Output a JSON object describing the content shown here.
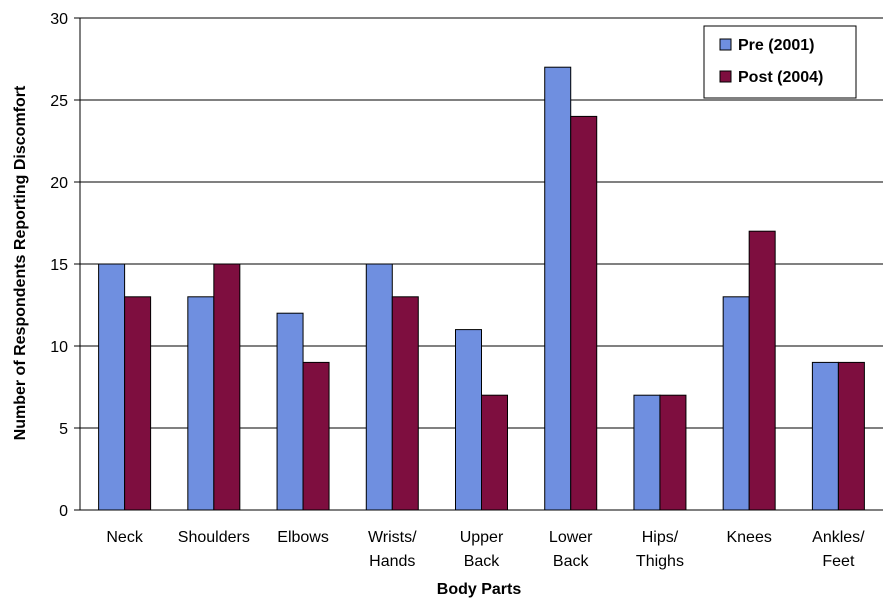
{
  "chart_data": {
    "type": "bar",
    "categories": [
      [
        "Neck"
      ],
      [
        "Shoulders"
      ],
      [
        "Elbows"
      ],
      [
        "Wrists/",
        "Hands"
      ],
      [
        "Upper",
        "Back"
      ],
      [
        "Lower",
        "Back"
      ],
      [
        "Hips/",
        "Thighs"
      ],
      [
        "Knees"
      ],
      [
        "Ankles/",
        "Feet"
      ]
    ],
    "series": [
      {
        "name": "Pre (2001)",
        "color": "#6f8fe0",
        "values": [
          15,
          13,
          12,
          15,
          11,
          27,
          7,
          13,
          9
        ]
      },
      {
        "name": "Post (2004)",
        "color": "#7e0e3f",
        "values": [
          13,
          15,
          9,
          13,
          7,
          24,
          7,
          17,
          9
        ]
      }
    ],
    "xlabel": "Body Parts",
    "ylabel": "Number of Respondents Reporting Discomfort",
    "ylim": [
      0,
      30
    ],
    "yticks": [
      0,
      5,
      10,
      15,
      20,
      25,
      30
    ],
    "grid": true,
    "legend_position": "top-right"
  }
}
